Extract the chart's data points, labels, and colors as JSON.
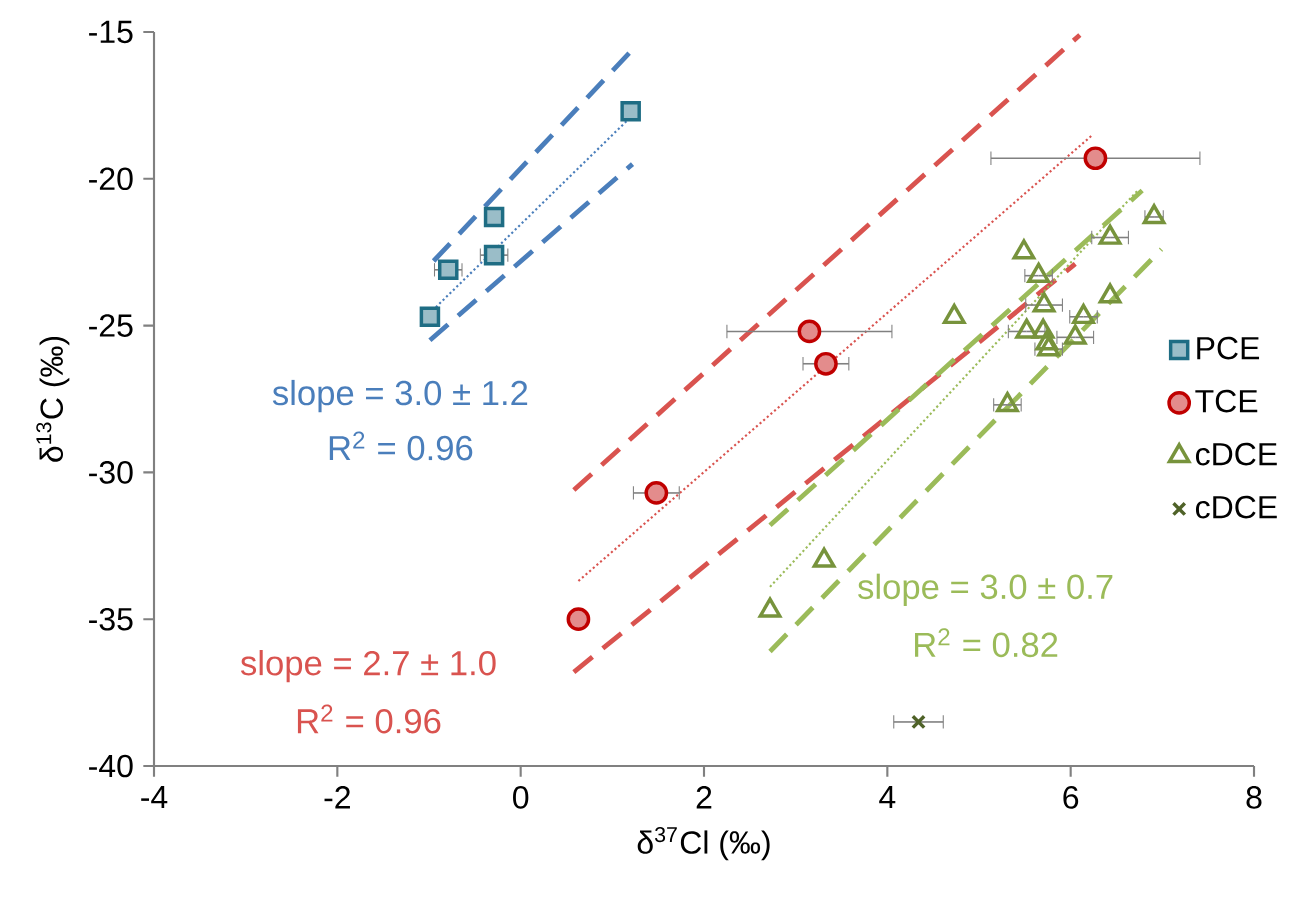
{
  "chart_data": {
    "type": "scatter",
    "xlabel": "δ$^{37}$Cl (‰)",
    "ylabel": "δ$^{13}$C (‰)",
    "xlim": [
      -4,
      8
    ],
    "ylim": [
      -40,
      -15
    ],
    "xticks": [
      -4,
      -2,
      0,
      2,
      4,
      6,
      8
    ],
    "yticks": [
      -40,
      -35,
      -30,
      -25,
      -20,
      -15
    ],
    "grid": false,
    "legend": "right",
    "series": [
      {
        "name": "PCE",
        "marker": "square",
        "color": "#1f6d84",
        "x": [
          1.2,
          -0.29,
          -0.29,
          -0.79,
          -0.99
        ],
        "values": [
          -17.7,
          -21.3,
          -22.6,
          -23.1,
          -24.7
        ],
        "xerrors": [
          null,
          null,
          0.15,
          0.15,
          null
        ]
      },
      {
        "name": "TCE",
        "marker": "circle",
        "color": "#c00000",
        "x": [
          6.27,
          3.15,
          3.33,
          1.48,
          0.63
        ],
        "values": [
          -19.3,
          -25.2,
          -26.3,
          -30.7,
          -35.0
        ],
        "xerrors": [
          1.14,
          0.9,
          0.25,
          0.25,
          null
        ]
      },
      {
        "name": "cDCE",
        "marker": "triangle",
        "color": "#77933c",
        "x": [
          6.91,
          6.43,
          5.49,
          5.65,
          4.73,
          6.43,
          5.71,
          6.14,
          5.52,
          5.7,
          5.74,
          6.05,
          5.76,
          5.31,
          3.31,
          2.72
        ],
        "values": [
          -21.3,
          -22.0,
          -22.5,
          -23.3,
          -24.7,
          -24.0,
          -24.3,
          -24.7,
          -25.2,
          -25.2,
          -25.6,
          -25.4,
          -25.8,
          -27.7,
          -33.0,
          -34.7
        ],
        "xerrors": [
          0.1,
          0.2,
          null,
          0.15,
          null,
          null,
          0.2,
          0.15,
          0.2,
          null,
          null,
          0.2,
          0.15,
          0.15,
          null,
          null
        ]
      },
      {
        "name": "cDCE",
        "marker": "cross",
        "color": "#4f6228",
        "x": [
          4.34
        ],
        "values": [
          -38.5
        ],
        "xerrors": [
          0.27
        ]
      },
      {
        "type": "line",
        "line_style": "dotted",
        "color": "#4a7ebb",
        "x": [
          -1.0,
          1.2
        ],
        "values": [
          -24.6,
          -17.9
        ]
      },
      {
        "type": "line",
        "line_style": "dashed",
        "color": "#4a7ebb",
        "x": [
          -0.95,
          1.22
        ],
        "values": [
          -22.8,
          -15.6
        ]
      },
      {
        "type": "line",
        "line_style": "dashed",
        "color": "#4a7ebb",
        "x": [
          -0.99,
          1.22
        ],
        "values": [
          -25.5,
          -19.5
        ]
      },
      {
        "type": "line",
        "line_style": "dotted",
        "color": "#d9534f",
        "x": [
          0.63,
          6.24
        ],
        "values": [
          -33.7,
          -18.5
        ]
      },
      {
        "type": "line",
        "line_style": "dashed",
        "color": "#d9534f",
        "x": [
          0.58,
          6.1
        ],
        "values": [
          -30.6,
          -15.1
        ]
      },
      {
        "type": "line",
        "line_style": "dashed",
        "color": "#d9534f",
        "x": [
          0.58,
          6.05
        ],
        "values": [
          -36.8,
          -22.9
        ]
      },
      {
        "type": "line",
        "line_style": "dotted",
        "color": "#9bbb59",
        "x": [
          2.72,
          6.73
        ],
        "values": [
          -33.9,
          -20.4
        ]
      },
      {
        "type": "line",
        "line_style": "dashed",
        "color": "#9bbb59",
        "x": [
          2.72,
          6.78
        ],
        "values": [
          -31.8,
          -20.4
        ]
      },
      {
        "type": "line",
        "line_style": "dashed",
        "color": "#9bbb59",
        "x": [
          2.72,
          6.99
        ],
        "values": [
          -36.1,
          -22.4
        ]
      }
    ],
    "annotations": [
      "slope = 3.0 ± 1.2",
      "R$^{2}$ = 0.96",
      "slope = 2.7 ± 1.0",
      "R$^{2}$ = 0.96",
      "slope = 3.0 ± 0.7",
      "R$^{2}$ = 0.82"
    ]
  }
}
